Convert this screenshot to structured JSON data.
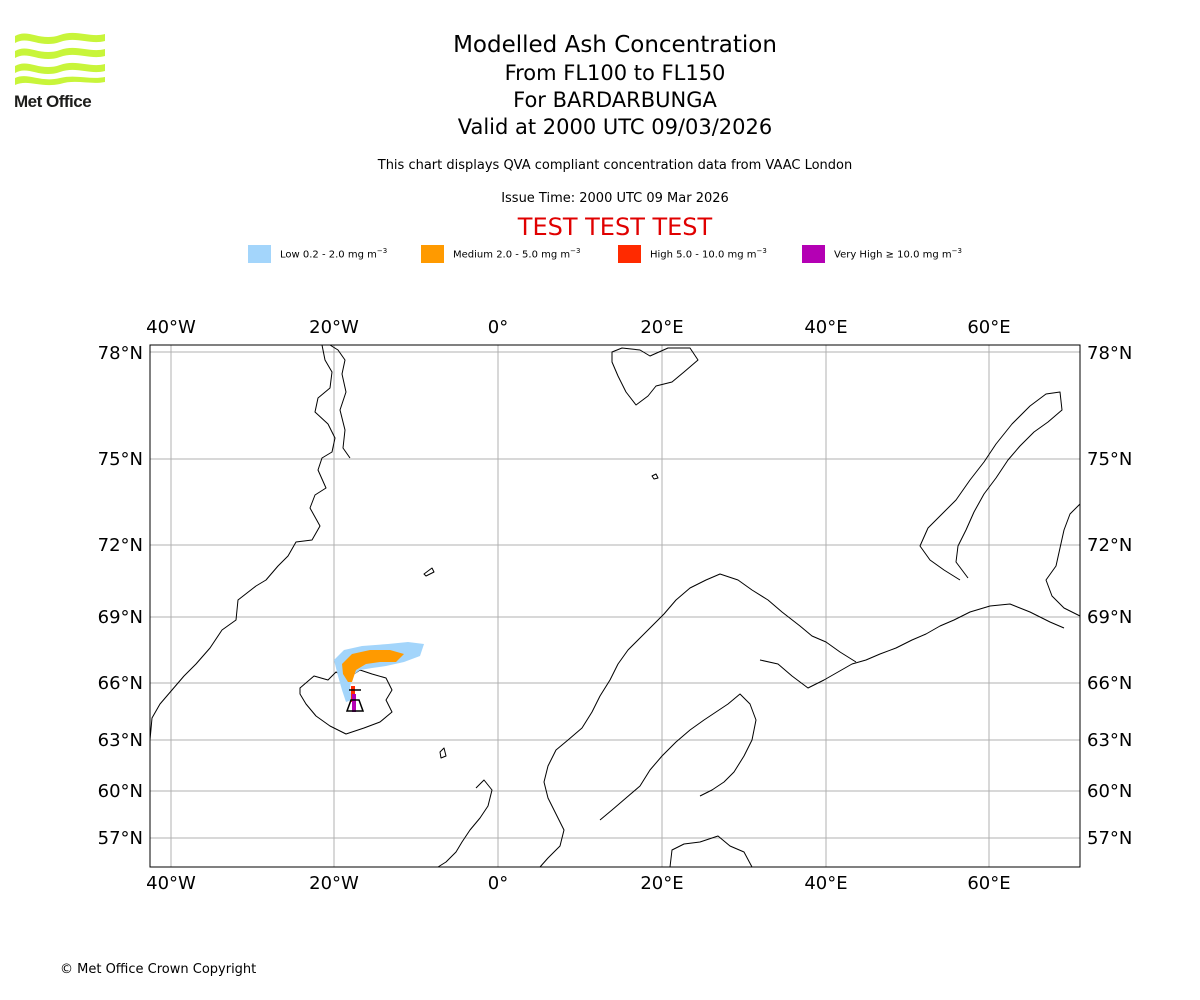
{
  "branding": {
    "name": "Met Office"
  },
  "header": {
    "title": "Modelled Ash Concentration",
    "levels": "From FL100 to FL150",
    "volcano": "For BARDARBUNGA",
    "valid": "Valid at 2000 UTC 09/03/2026",
    "description": "This chart displays QVA compliant concentration data from VAAC London",
    "issue": "Issue Time: 2000 UTC 09 Mar 2026",
    "test_banner": "TEST TEST TEST"
  },
  "legend": [
    {
      "level": "Low",
      "range": "0.2 - 2.0 mg m",
      "color": "#a3d5fb"
    },
    {
      "level": "Medium",
      "range": "2.0 - 5.0 mg m",
      "color": "#ff9a00"
    },
    {
      "level": "High",
      "range": "5.0 - 10.0 mg m",
      "color": "#ff2a00"
    },
    {
      "level": "Very High",
      "range": "≥  10.0 mg m",
      "color": "#b400b4"
    }
  ],
  "legend_unit_exponent": "−3",
  "map": {
    "longitude_labels": [
      "40°W",
      "20°W",
      "0°",
      "20°E",
      "40°E",
      "60°E"
    ],
    "latitude_labels": [
      "78°N",
      "75°N",
      "72°N",
      "69°N",
      "66°N",
      "63°N",
      "60°N",
      "57°N"
    ],
    "volcano_marker_icon": "volcano-marker-icon",
    "ash_levels_present": [
      "Low",
      "Medium",
      "High",
      "Very High"
    ]
  },
  "footer": {
    "copyright": "© Met Office Crown Copyright"
  }
}
